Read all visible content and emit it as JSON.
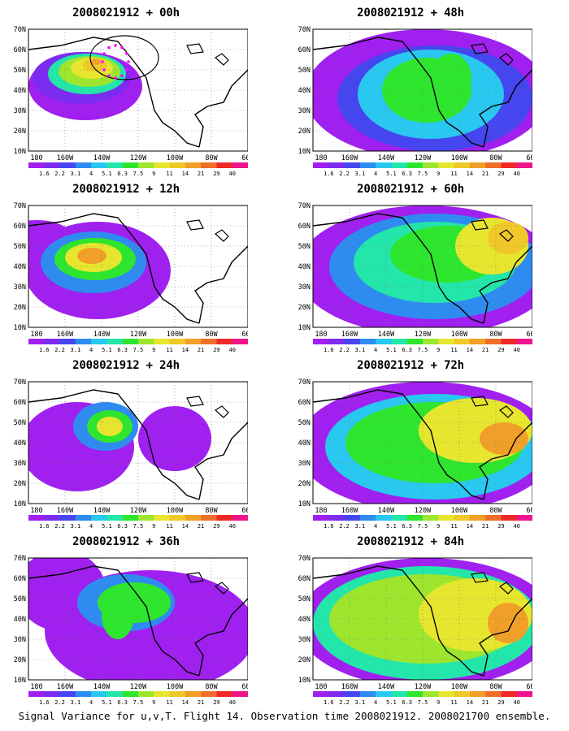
{
  "caption": "Signal Variance for u,v,T. Flight 14. Observation time 2008021912. 2008021700 ensemble.",
  "map": {
    "lon_labels": [
      "180",
      "160W",
      "140W",
      "120W",
      "100W",
      "80W",
      "60W"
    ],
    "lat_labels": [
      "70N",
      "60N",
      "50N",
      "40N",
      "30N",
      "20N",
      "10N"
    ]
  },
  "colorbar": {
    "labels": [
      "1.6",
      "2.2",
      "3.1",
      "4",
      "5.1",
      "6.3",
      "7.5",
      "9",
      "11",
      "14",
      "21",
      "29",
      "40"
    ],
    "colors": [
      "#a020f0",
      "#7b2cf0",
      "#4646f0",
      "#2e8cf0",
      "#28c8f0",
      "#23e6aa",
      "#2ee62e",
      "#9ee62e",
      "#e6e62e",
      "#f0c828",
      "#f0a028",
      "#f06e28",
      "#f02828",
      "#f0148c"
    ]
  },
  "panels": [
    {
      "title": "2008021912 + 00h",
      "lead": "00h"
    },
    {
      "title": "2008021912 + 12h",
      "lead": "12h"
    },
    {
      "title": "2008021912 + 24h",
      "lead": "24h"
    },
    {
      "title": "2008021912 + 36h",
      "lead": "36h"
    },
    {
      "title": "2008021912 + 48h",
      "lead": "48h"
    },
    {
      "title": "2008021912 + 60h",
      "lead": "60h"
    },
    {
      "title": "2008021912 + 72h",
      "lead": "72h"
    },
    {
      "title": "2008021912 + 84h",
      "lead": "84h"
    }
  ]
}
